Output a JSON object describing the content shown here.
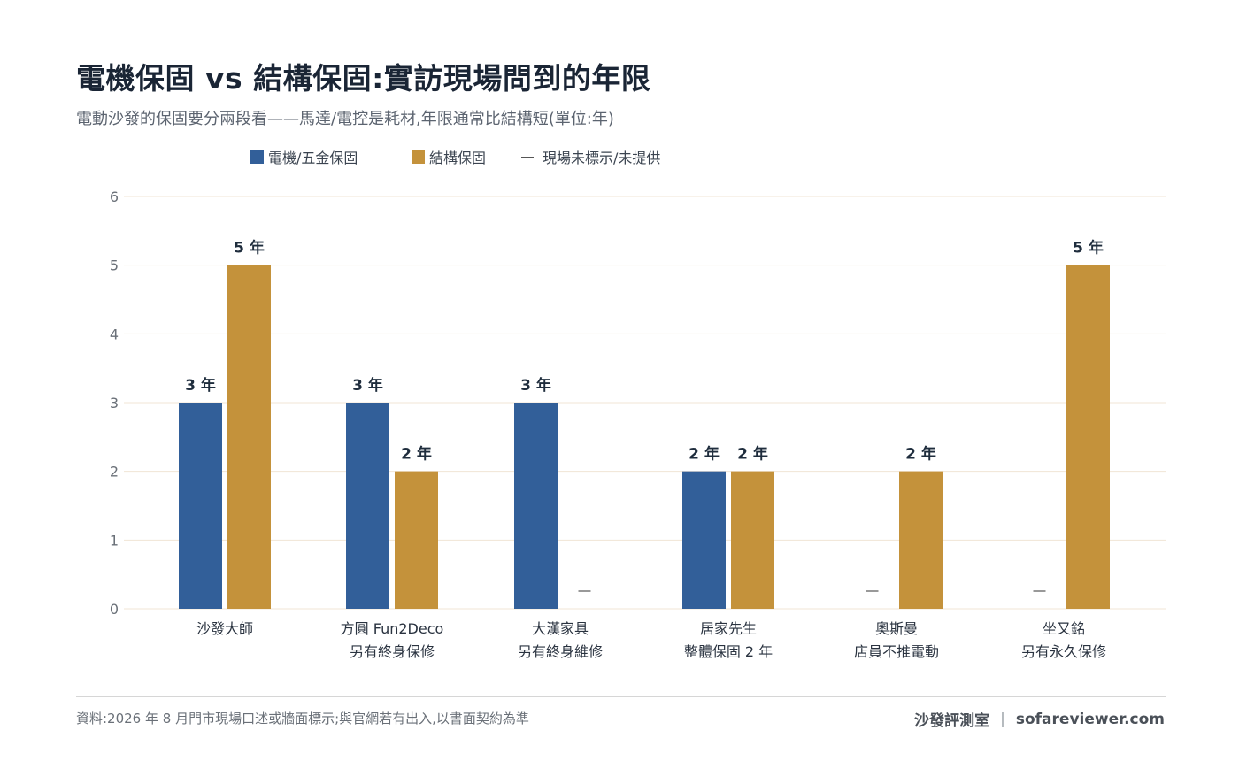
{
  "title": "電機保固 vs 結構保固:實訪現場問到的年限",
  "subtitle": "電動沙發的保固要分兩段看——馬達/電控是耗材,年限通常比結構短(單位:年)",
  "legend": {
    "motor": "電機/五金保固",
    "frame": "結構保固",
    "na": "現場未標示/未提供"
  },
  "colors": {
    "motor": "#325f99",
    "frame": "#c4923b",
    "grid": "#f0e4d4",
    "na_mark": "#555555"
  },
  "chart_data": {
    "type": "bar",
    "categories": [
      [
        "沙發大師"
      ],
      [
        "方圓 Fun2Deco",
        "另有終身保修"
      ],
      [
        "大漢家具",
        "另有終身維修"
      ],
      [
        "居家先生",
        "整體保固 2 年"
      ],
      [
        "奧斯曼",
        "店員不推電動"
      ],
      [
        "坐又銘",
        "另有永久保修"
      ]
    ],
    "series": [
      {
        "name": "電機/五金保固",
        "values": [
          3,
          3,
          3,
          2,
          null,
          null
        ],
        "labels": [
          "3 年",
          "3 年",
          "3 年",
          "2 年",
          "—",
          "—"
        ]
      },
      {
        "name": "結構保固",
        "values": [
          5,
          2,
          null,
          2,
          2,
          5
        ],
        "labels": [
          "5 年",
          "2 年",
          "—",
          "2 年",
          "2 年",
          "5 年"
        ]
      }
    ],
    "ylim": [
      0,
      6
    ],
    "yticks": [
      "0",
      "1",
      "2",
      "3",
      "4",
      "5",
      "6"
    ],
    "grid": true,
    "legend_position": "top"
  },
  "footer": {
    "source": "資料:2026 年 8 月門市現場口述或牆面標示;與官網若有出入,以書面契約為準",
    "brand": "沙發評測室",
    "separator": "|",
    "site": "sofareviewer.com"
  }
}
